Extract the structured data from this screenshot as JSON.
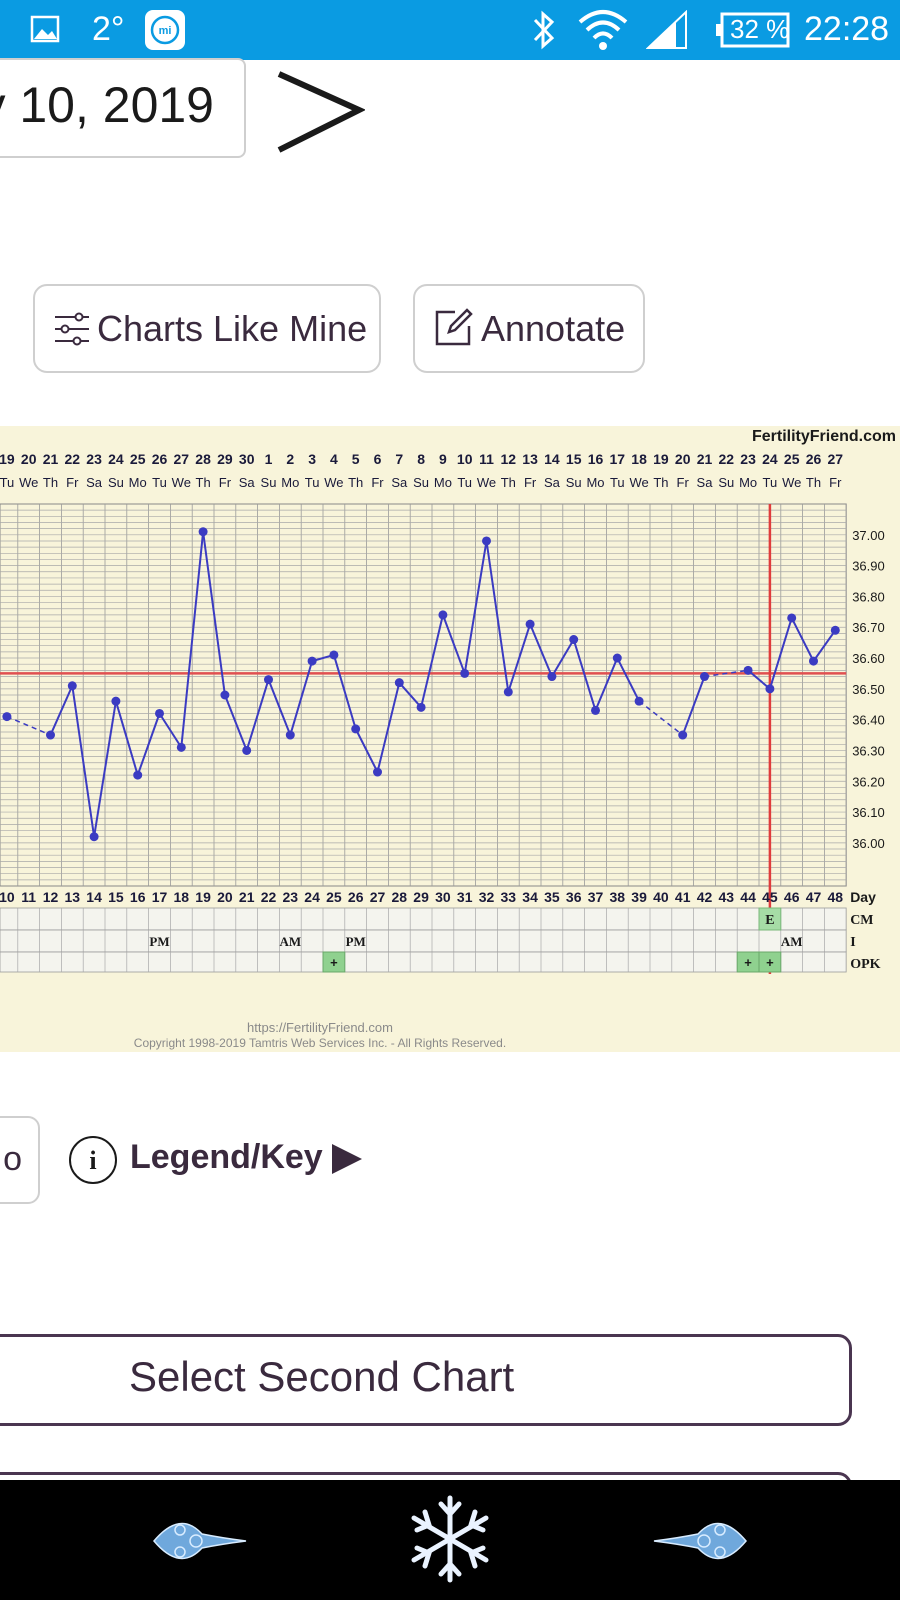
{
  "status_bar": {
    "temperature": "2°",
    "battery": "32 %",
    "time": "22:28",
    "icons": [
      "gallery-icon",
      "mi-app-icon",
      "bluetooth-icon",
      "wifi-icon",
      "signal-icon",
      "battery-icon"
    ]
  },
  "date_nav": {
    "date_text": "y 10, 2019",
    "next_icon": "chevron-right-icon"
  },
  "actions": {
    "charts_like_mine": "Charts Like Mine",
    "annotate": "Annotate"
  },
  "chart_data": {
    "type": "line",
    "brand": "FertilityFriend.com",
    "dates": [
      "19",
      "20",
      "21",
      "22",
      "23",
      "24",
      "25",
      "26",
      "27",
      "28",
      "29",
      "30",
      "1",
      "2",
      "3",
      "4",
      "5",
      "6",
      "7",
      "8",
      "9",
      "10",
      "11",
      "12",
      "13",
      "14",
      "15",
      "16",
      "17",
      "18",
      "19",
      "20",
      "21",
      "22",
      "23",
      "24",
      "25",
      "26",
      "27"
    ],
    "weekdays": [
      "Tu",
      "We",
      "Th",
      "Fr",
      "Sa",
      "Su",
      "Mo",
      "Tu",
      "We",
      "Th",
      "Fr",
      "Sa",
      "Su",
      "Mo",
      "Tu",
      "We",
      "Th",
      "Fr",
      "Sa",
      "Su",
      "Mo",
      "Tu",
      "We",
      "Th",
      "Fr",
      "Sa",
      "Su",
      "Mo",
      "Tu",
      "We",
      "Th",
      "Fr",
      "Sa",
      "Su",
      "Mo",
      "Tu",
      "We",
      "Th",
      "Fr"
    ],
    "cycle_days": [
      "10",
      "11",
      "12",
      "13",
      "14",
      "15",
      "16",
      "17",
      "18",
      "19",
      "20",
      "21",
      "22",
      "23",
      "24",
      "25",
      "26",
      "27",
      "28",
      "29",
      "30",
      "31",
      "32",
      "33",
      "34",
      "35",
      "36",
      "37",
      "38",
      "39",
      "40",
      "41",
      "42",
      "43",
      "44",
      "45",
      "46",
      "47",
      "48"
    ],
    "day_label": "Day",
    "y_ticks": [
      "37.00",
      "36.90",
      "36.80",
      "36.70",
      "36.60",
      "36.50",
      "36.40",
      "36.30",
      "36.20",
      "36.10",
      "36.00"
    ],
    "ylim": [
      35.86,
      37.1
    ],
    "temperatures": [
      36.41,
      null,
      36.35,
      36.51,
      36.02,
      36.46,
      36.22,
      36.42,
      36.31,
      37.01,
      36.48,
      36.3,
      36.53,
      36.35,
      36.59,
      36.61,
      36.37,
      36.23,
      36.52,
      36.44,
      36.74,
      36.55,
      36.98,
      36.49,
      36.71,
      36.54,
      36.66,
      36.43,
      36.6,
      36.46,
      null,
      36.35,
      36.54,
      null,
      36.56,
      36.5,
      36.73,
      36.59,
      36.69
    ],
    "dashed_segments": [
      [
        0,
        2
      ],
      [
        29,
        31
      ],
      [
        32,
        34
      ]
    ],
    "coverline": 36.55,
    "ovulation_day_index": 35,
    "row_labels": [
      "CM",
      "I",
      "OPK"
    ],
    "cm_row": [
      {
        "index": 35,
        "value": "E"
      }
    ],
    "intercourse_row": [
      {
        "index": 7,
        "value": "PM"
      },
      {
        "index": 13,
        "value": "AM"
      },
      {
        "index": 16,
        "value": "PM"
      },
      {
        "index": 36,
        "value": "AM"
      }
    ],
    "opk_row": [
      {
        "index": 15,
        "value": "+"
      },
      {
        "index": 34,
        "value": "+"
      },
      {
        "index": 35,
        "value": "+"
      }
    ],
    "colors": {
      "line": "#3b3bc2",
      "coverline": "#e05050",
      "ovulation": "#e03c3c",
      "background": "#f8f4da",
      "opk_positive": "#8fd18f",
      "cm_fertile": "#a6dca6"
    },
    "footer_url": "https://FertilityFriend.com",
    "footer_copyright": "Copyright 1998-2019 Tamtris Web Services Inc. - All Rights Reserved."
  },
  "prev_button": {
    "label": "o"
  },
  "legend": {
    "label": "Legend/Key"
  },
  "select_chart": {
    "label": "Select Second Chart"
  },
  "bottom_nav": {
    "icons": [
      "ornament-left-icon",
      "snowflake-icon",
      "ornament-right-icon"
    ]
  }
}
